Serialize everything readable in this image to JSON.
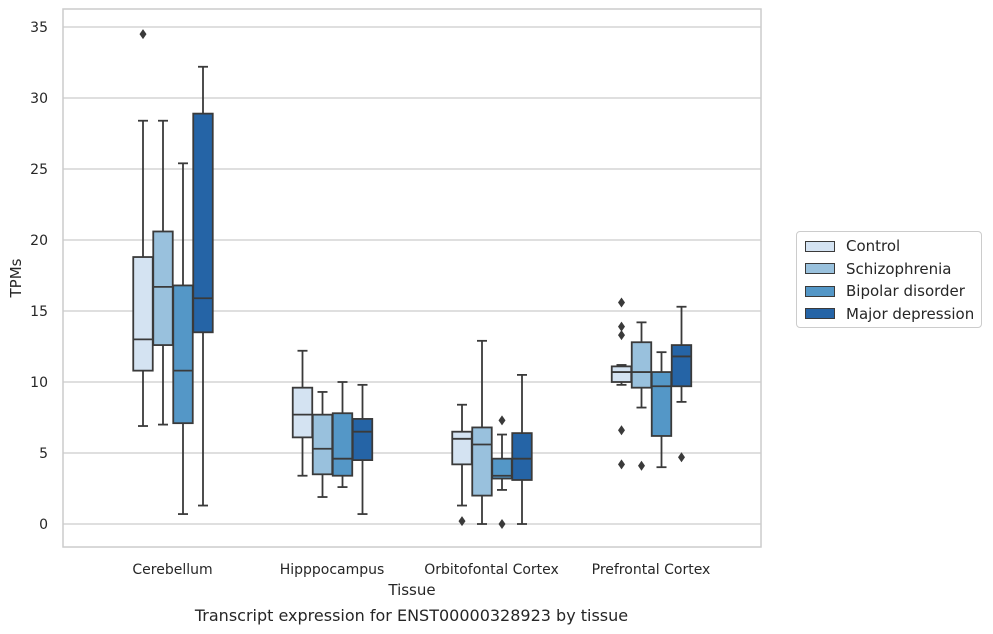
{
  "caption": "Transcript expression for ENST00000328923 by tissue",
  "colors": {
    "Control": "#d4e3f2",
    "Schizophrenia": "#99c1dd",
    "Bipolar disorder": "#5497c7",
    "Major depression": "#2564a6",
    "grid": "#cccccc",
    "line": "#3a3a3a"
  },
  "chart_data": {
    "type": "box",
    "xlabel": "Tissue",
    "ylabel": "TPMs",
    "ylim": [
      -1.7,
      36.3
    ],
    "yticks": [
      0,
      5,
      10,
      15,
      20,
      25,
      30,
      35
    ],
    "grid": "horizontal",
    "legend_position": "right",
    "categories": [
      "Cerebellum",
      "Hipppocampus",
      "Orbitofontal Cortex",
      "Prefrontal Cortex"
    ],
    "series": [
      {
        "name": "Control",
        "boxes": [
          {
            "whislo": 6.9,
            "q1": 10.8,
            "med": 13.0,
            "q3": 18.8,
            "whishi": 28.4,
            "fliers": [
              34.5
            ]
          },
          {
            "whislo": 3.4,
            "q1": 6.1,
            "med": 7.7,
            "q3": 9.6,
            "whishi": 12.2,
            "fliers": []
          },
          {
            "whislo": 1.3,
            "q1": 4.2,
            "med": 6.0,
            "q3": 6.5,
            "whishi": 8.4,
            "fliers": [
              0.2
            ]
          },
          {
            "whislo": 9.8,
            "q1": 10.0,
            "med": 10.7,
            "q3": 11.1,
            "whishi": 11.2,
            "fliers": [
              15.6,
              13.9,
              13.3,
              6.6,
              4.2
            ]
          }
        ]
      },
      {
        "name": "Schizophrenia",
        "boxes": [
          {
            "whislo": 7.0,
            "q1": 12.6,
            "med": 16.7,
            "q3": 20.6,
            "whishi": 28.4,
            "fliers": []
          },
          {
            "whislo": 1.9,
            "q1": 3.5,
            "med": 5.3,
            "q3": 7.7,
            "whishi": 9.3,
            "fliers": []
          },
          {
            "whislo": 0.0,
            "q1": 2.0,
            "med": 5.6,
            "q3": 6.8,
            "whishi": 12.9,
            "fliers": []
          },
          {
            "whislo": 8.2,
            "q1": 9.6,
            "med": 10.7,
            "q3": 12.8,
            "whishi": 14.2,
            "fliers": [
              4.1
            ]
          }
        ]
      },
      {
        "name": "Bipolar disorder",
        "boxes": [
          {
            "whislo": 0.7,
            "q1": 7.1,
            "med": 10.8,
            "q3": 16.8,
            "whishi": 25.4,
            "fliers": []
          },
          {
            "whislo": 2.6,
            "q1": 3.4,
            "med": 4.6,
            "q3": 7.8,
            "whishi": 10.0,
            "fliers": []
          },
          {
            "whislo": 2.4,
            "q1": 3.2,
            "med": 3.4,
            "q3": 4.6,
            "whishi": 6.3,
            "fliers": [
              7.3,
              0.0
            ]
          },
          {
            "whislo": 4.0,
            "q1": 6.2,
            "med": 9.7,
            "q3": 10.7,
            "whishi": 12.1,
            "fliers": []
          }
        ]
      },
      {
        "name": "Major depression",
        "boxes": [
          {
            "whislo": 1.3,
            "q1": 13.5,
            "med": 15.9,
            "q3": 28.9,
            "whishi": 32.2,
            "fliers": []
          },
          {
            "whislo": 0.7,
            "q1": 4.5,
            "med": 6.5,
            "q3": 7.4,
            "whishi": 9.8,
            "fliers": []
          },
          {
            "whislo": 0.0,
            "q1": 3.1,
            "med": 4.6,
            "q3": 6.4,
            "whishi": 10.5,
            "fliers": []
          },
          {
            "whislo": 8.6,
            "q1": 9.7,
            "med": 11.8,
            "q3": 12.6,
            "whishi": 15.3,
            "fliers": [
              4.7
            ]
          }
        ]
      }
    ]
  }
}
